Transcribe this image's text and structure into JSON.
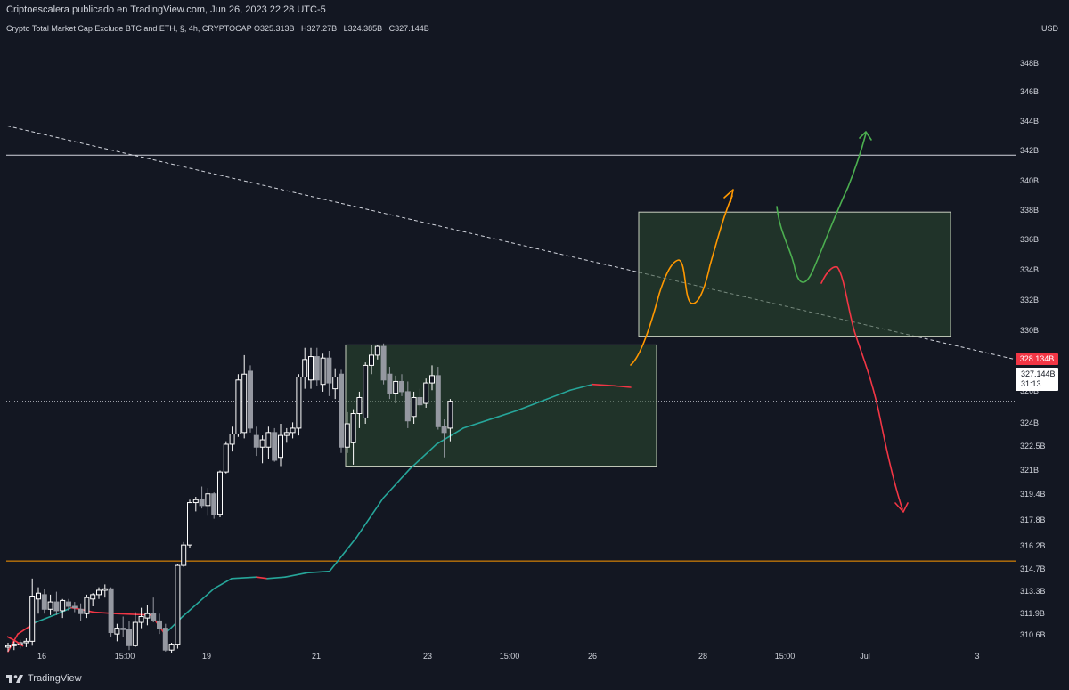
{
  "header": {
    "published_text": "Criptoescalera publicado en TradingView.com, Jun 26, 2023 22:28 UTC-5"
  },
  "symbol_info": {
    "name": "Crypto Total Market Cap Exclude BTC and ETH, §, 4h, CRYPTOCAP",
    "open_key": "O",
    "open": "325.313B",
    "high_key": "H",
    "high": "327.27B",
    "low_key": "L",
    "low": "324.385B",
    "close_key": "C",
    "close": "327.144B"
  },
  "currency": "USD",
  "price_scale": {
    "labels": [
      "348B",
      "346B",
      "344B",
      "342B",
      "340B",
      "338B",
      "336B",
      "334B",
      "332B",
      "330B",
      "326B",
      "324B",
      "322.5B",
      "321B",
      "319.4B",
      "317.8B",
      "316.2B",
      "314.7B",
      "313.3B",
      "311.9B",
      "310.6B"
    ],
    "ma_price_badge": "328.134B",
    "last_price": "327.144B",
    "countdown": "31:13"
  },
  "time_scale": {
    "labels": [
      "16",
      "15:00",
      "19",
      "21",
      "23",
      "15:00",
      "26",
      "28",
      "15:00",
      "Jul",
      "3"
    ]
  },
  "colors": {
    "background": "#131722",
    "candle_up": "#ffffff",
    "candle_down": "#9598a1",
    "box_fill": "#2b4a2f",
    "ma_up": "#26a69a",
    "ma_down": "#f23645",
    "orange_path": "#ff9800",
    "green_path": "#4caf50",
    "red_path": "#f23645",
    "support_line": "#ff9800"
  },
  "chart_data": {
    "type": "candlestick",
    "symbol": "CRYPTOCAP",
    "interval": "4h",
    "ylim": [
      310.0,
      349.5
    ],
    "horizontal_levels": [
      344.0,
      316.2
    ],
    "candles": [
      {
        "o": 310.3,
        "h": 310.6,
        "l": 310.0,
        "c": 310.4
      },
      {
        "o": 310.4,
        "h": 310.7,
        "l": 310.1,
        "c": 310.5
      },
      {
        "o": 310.5,
        "h": 310.8,
        "l": 310.2,
        "c": 310.6
      },
      {
        "o": 310.6,
        "h": 310.9,
        "l": 310.3,
        "c": 310.7
      },
      {
        "o": 310.7,
        "h": 315.0,
        "l": 310.4,
        "c": 313.8
      },
      {
        "o": 313.6,
        "h": 314.4,
        "l": 312.6,
        "c": 314.0
      },
      {
        "o": 313.9,
        "h": 314.3,
        "l": 312.6,
        "c": 312.9
      },
      {
        "o": 312.9,
        "h": 313.9,
        "l": 312.5,
        "c": 313.4
      },
      {
        "o": 313.4,
        "h": 314.1,
        "l": 312.5,
        "c": 312.8
      },
      {
        "o": 312.8,
        "h": 313.6,
        "l": 312.3,
        "c": 313.5
      },
      {
        "o": 313.4,
        "h": 313.6,
        "l": 312.8,
        "c": 313.1
      },
      {
        "o": 313.1,
        "h": 313.4,
        "l": 312.7,
        "c": 313.0
      },
      {
        "o": 312.9,
        "h": 313.3,
        "l": 312.1,
        "c": 312.6
      },
      {
        "o": 312.6,
        "h": 313.9,
        "l": 312.3,
        "c": 313.7
      },
      {
        "o": 313.6,
        "h": 314.0,
        "l": 313.1,
        "c": 313.9
      },
      {
        "o": 313.9,
        "h": 314.4,
        "l": 313.6,
        "c": 314.2
      },
      {
        "o": 314.2,
        "h": 314.6,
        "l": 313.7,
        "c": 314.3
      },
      {
        "o": 314.3,
        "h": 314.4,
        "l": 311.0,
        "c": 311.3
      },
      {
        "o": 311.2,
        "h": 311.9,
        "l": 310.7,
        "c": 311.6
      },
      {
        "o": 311.6,
        "h": 312.4,
        "l": 311.0,
        "c": 311.5
      },
      {
        "o": 311.5,
        "h": 312.1,
        "l": 310.1,
        "c": 310.4
      },
      {
        "o": 310.4,
        "h": 312.7,
        "l": 310.3,
        "c": 312.0
      },
      {
        "o": 312.0,
        "h": 313.0,
        "l": 311.6,
        "c": 312.4
      },
      {
        "o": 312.3,
        "h": 313.2,
        "l": 311.8,
        "c": 312.6
      },
      {
        "o": 312.6,
        "h": 313.7,
        "l": 312.0,
        "c": 312.1
      },
      {
        "o": 312.1,
        "h": 312.6,
        "l": 311.2,
        "c": 311.6
      },
      {
        "o": 311.6,
        "h": 311.9,
        "l": 310.0,
        "c": 310.1
      },
      {
        "o": 310.1,
        "h": 310.6,
        "l": 309.9,
        "c": 310.5
      },
      {
        "o": 310.5,
        "h": 316.0,
        "l": 310.2,
        "c": 315.9
      },
      {
        "o": 315.9,
        "h": 317.5,
        "l": 315.8,
        "c": 317.3
      },
      {
        "o": 317.3,
        "h": 320.4,
        "l": 317.1,
        "c": 320.2
      },
      {
        "o": 320.2,
        "h": 320.6,
        "l": 319.6,
        "c": 320.4
      },
      {
        "o": 320.4,
        "h": 321.3,
        "l": 319.8,
        "c": 320.0
      },
      {
        "o": 320.0,
        "h": 321.2,
        "l": 319.3,
        "c": 320.8
      },
      {
        "o": 320.8,
        "h": 320.9,
        "l": 319.1,
        "c": 319.4
      },
      {
        "o": 319.4,
        "h": 322.4,
        "l": 319.2,
        "c": 322.3
      },
      {
        "o": 322.3,
        "h": 324.4,
        "l": 322.2,
        "c": 324.2
      },
      {
        "o": 324.2,
        "h": 325.4,
        "l": 323.7,
        "c": 324.9
      },
      {
        "o": 324.9,
        "h": 329.0,
        "l": 324.7,
        "c": 328.6
      },
      {
        "o": 325.0,
        "h": 330.3,
        "l": 324.6,
        "c": 329.0
      },
      {
        "o": 329.2,
        "h": 329.6,
        "l": 325.0,
        "c": 325.3
      },
      {
        "o": 324.8,
        "h": 325.4,
        "l": 323.4,
        "c": 324.0
      },
      {
        "o": 324.0,
        "h": 324.8,
        "l": 322.9,
        "c": 324.5
      },
      {
        "o": 324.0,
        "h": 325.4,
        "l": 323.2,
        "c": 325.0
      },
      {
        "o": 325.0,
        "h": 325.3,
        "l": 323.0,
        "c": 323.1
      },
      {
        "o": 323.3,
        "h": 325.6,
        "l": 322.7,
        "c": 324.8
      },
      {
        "o": 324.8,
        "h": 325.3,
        "l": 324.3,
        "c": 325.0
      },
      {
        "o": 325.0,
        "h": 325.7,
        "l": 324.6,
        "c": 325.3
      },
      {
        "o": 325.3,
        "h": 329.0,
        "l": 324.8,
        "c": 328.8
      },
      {
        "o": 328.8,
        "h": 330.8,
        "l": 328.0,
        "c": 330.0
      },
      {
        "o": 328.6,
        "h": 330.8,
        "l": 328.0,
        "c": 330.2
      },
      {
        "o": 330.2,
        "h": 330.8,
        "l": 328.2,
        "c": 328.6
      },
      {
        "o": 328.3,
        "h": 330.4,
        "l": 327.8,
        "c": 330.1
      },
      {
        "o": 330.1,
        "h": 330.6,
        "l": 327.5,
        "c": 328.4
      },
      {
        "o": 328.0,
        "h": 329.4,
        "l": 327.3,
        "c": 328.8
      },
      {
        "o": 329.0,
        "h": 329.3,
        "l": 323.6,
        "c": 324.0
      },
      {
        "o": 324.0,
        "h": 326.4,
        "l": 323.6,
        "c": 325.6
      },
      {
        "o": 324.3,
        "h": 326.6,
        "l": 322.8,
        "c": 326.3
      },
      {
        "o": 326.3,
        "h": 327.8,
        "l": 325.3,
        "c": 327.4
      },
      {
        "o": 326.0,
        "h": 329.8,
        "l": 325.6,
        "c": 329.6
      },
      {
        "o": 329.6,
        "h": 331.0,
        "l": 329.0,
        "c": 330.3
      },
      {
        "o": 330.3,
        "h": 331.0,
        "l": 330.0,
        "c": 330.9
      },
      {
        "o": 330.9,
        "h": 331.1,
        "l": 328.3,
        "c": 328.6
      },
      {
        "o": 329.0,
        "h": 329.5,
        "l": 327.3,
        "c": 327.7
      },
      {
        "o": 327.7,
        "h": 328.9,
        "l": 327.0,
        "c": 328.5
      },
      {
        "o": 328.5,
        "h": 329.0,
        "l": 327.5,
        "c": 327.8
      },
      {
        "o": 327.8,
        "h": 328.5,
        "l": 325.3,
        "c": 325.8
      },
      {
        "o": 326.1,
        "h": 327.8,
        "l": 325.6,
        "c": 327.4
      },
      {
        "o": 327.4,
        "h": 328.0,
        "l": 326.5,
        "c": 326.9
      },
      {
        "o": 327.0,
        "h": 328.7,
        "l": 326.7,
        "c": 328.4
      },
      {
        "o": 328.4,
        "h": 329.6,
        "l": 327.9,
        "c": 328.9
      },
      {
        "o": 328.9,
        "h": 329.5,
        "l": 325.2,
        "c": 325.4
      },
      {
        "o": 325.4,
        "h": 325.9,
        "l": 323.3,
        "c": 325.0
      },
      {
        "o": 325.3,
        "h": 327.3,
        "l": 324.4,
        "c": 327.144
      }
    ],
    "moving_average": [
      [
        9,
        310.0
      ],
      [
        20,
        311.2
      ],
      [
        40,
        312.0
      ],
      [
        65,
        312.6
      ],
      [
        80,
        313.0
      ],
      [
        90,
        312.9
      ],
      [
        105,
        312.7
      ],
      [
        130,
        312.6
      ],
      [
        170,
        312.5
      ],
      [
        185,
        311.2
      ],
      [
        205,
        312.4
      ],
      [
        240,
        314.3
      ],
      [
        260,
        315.0
      ],
      [
        288,
        315.1
      ],
      [
        300,
        315.0
      ],
      [
        320,
        315.1
      ],
      [
        345,
        315.4
      ],
      [
        370,
        315.5
      ],
      [
        400,
        317.8
      ],
      [
        430,
        320.5
      ],
      [
        460,
        322.5
      ],
      [
        490,
        324.2
      ],
      [
        520,
        325.3
      ],
      [
        555,
        326.0
      ],
      [
        580,
        326.5
      ],
      [
        610,
        327.2
      ],
      [
        640,
        327.9
      ],
      [
        665,
        328.3
      ],
      [
        690,
        328.2
      ],
      [
        708,
        328.1
      ]
    ],
    "annotations": {
      "trendline_dashed": [
        [
          8,
          346.0
        ],
        [
          1140,
          330.0
        ]
      ],
      "range_box_1": {
        "x1": 388,
        "x2": 737,
        "y_top": 331.0,
        "y_bottom": 322.7
      },
      "range_box_2": {
        "x1": 717,
        "x2": 1067,
        "y_top": 340.1,
        "y_bottom": 331.6
      }
    }
  }
}
